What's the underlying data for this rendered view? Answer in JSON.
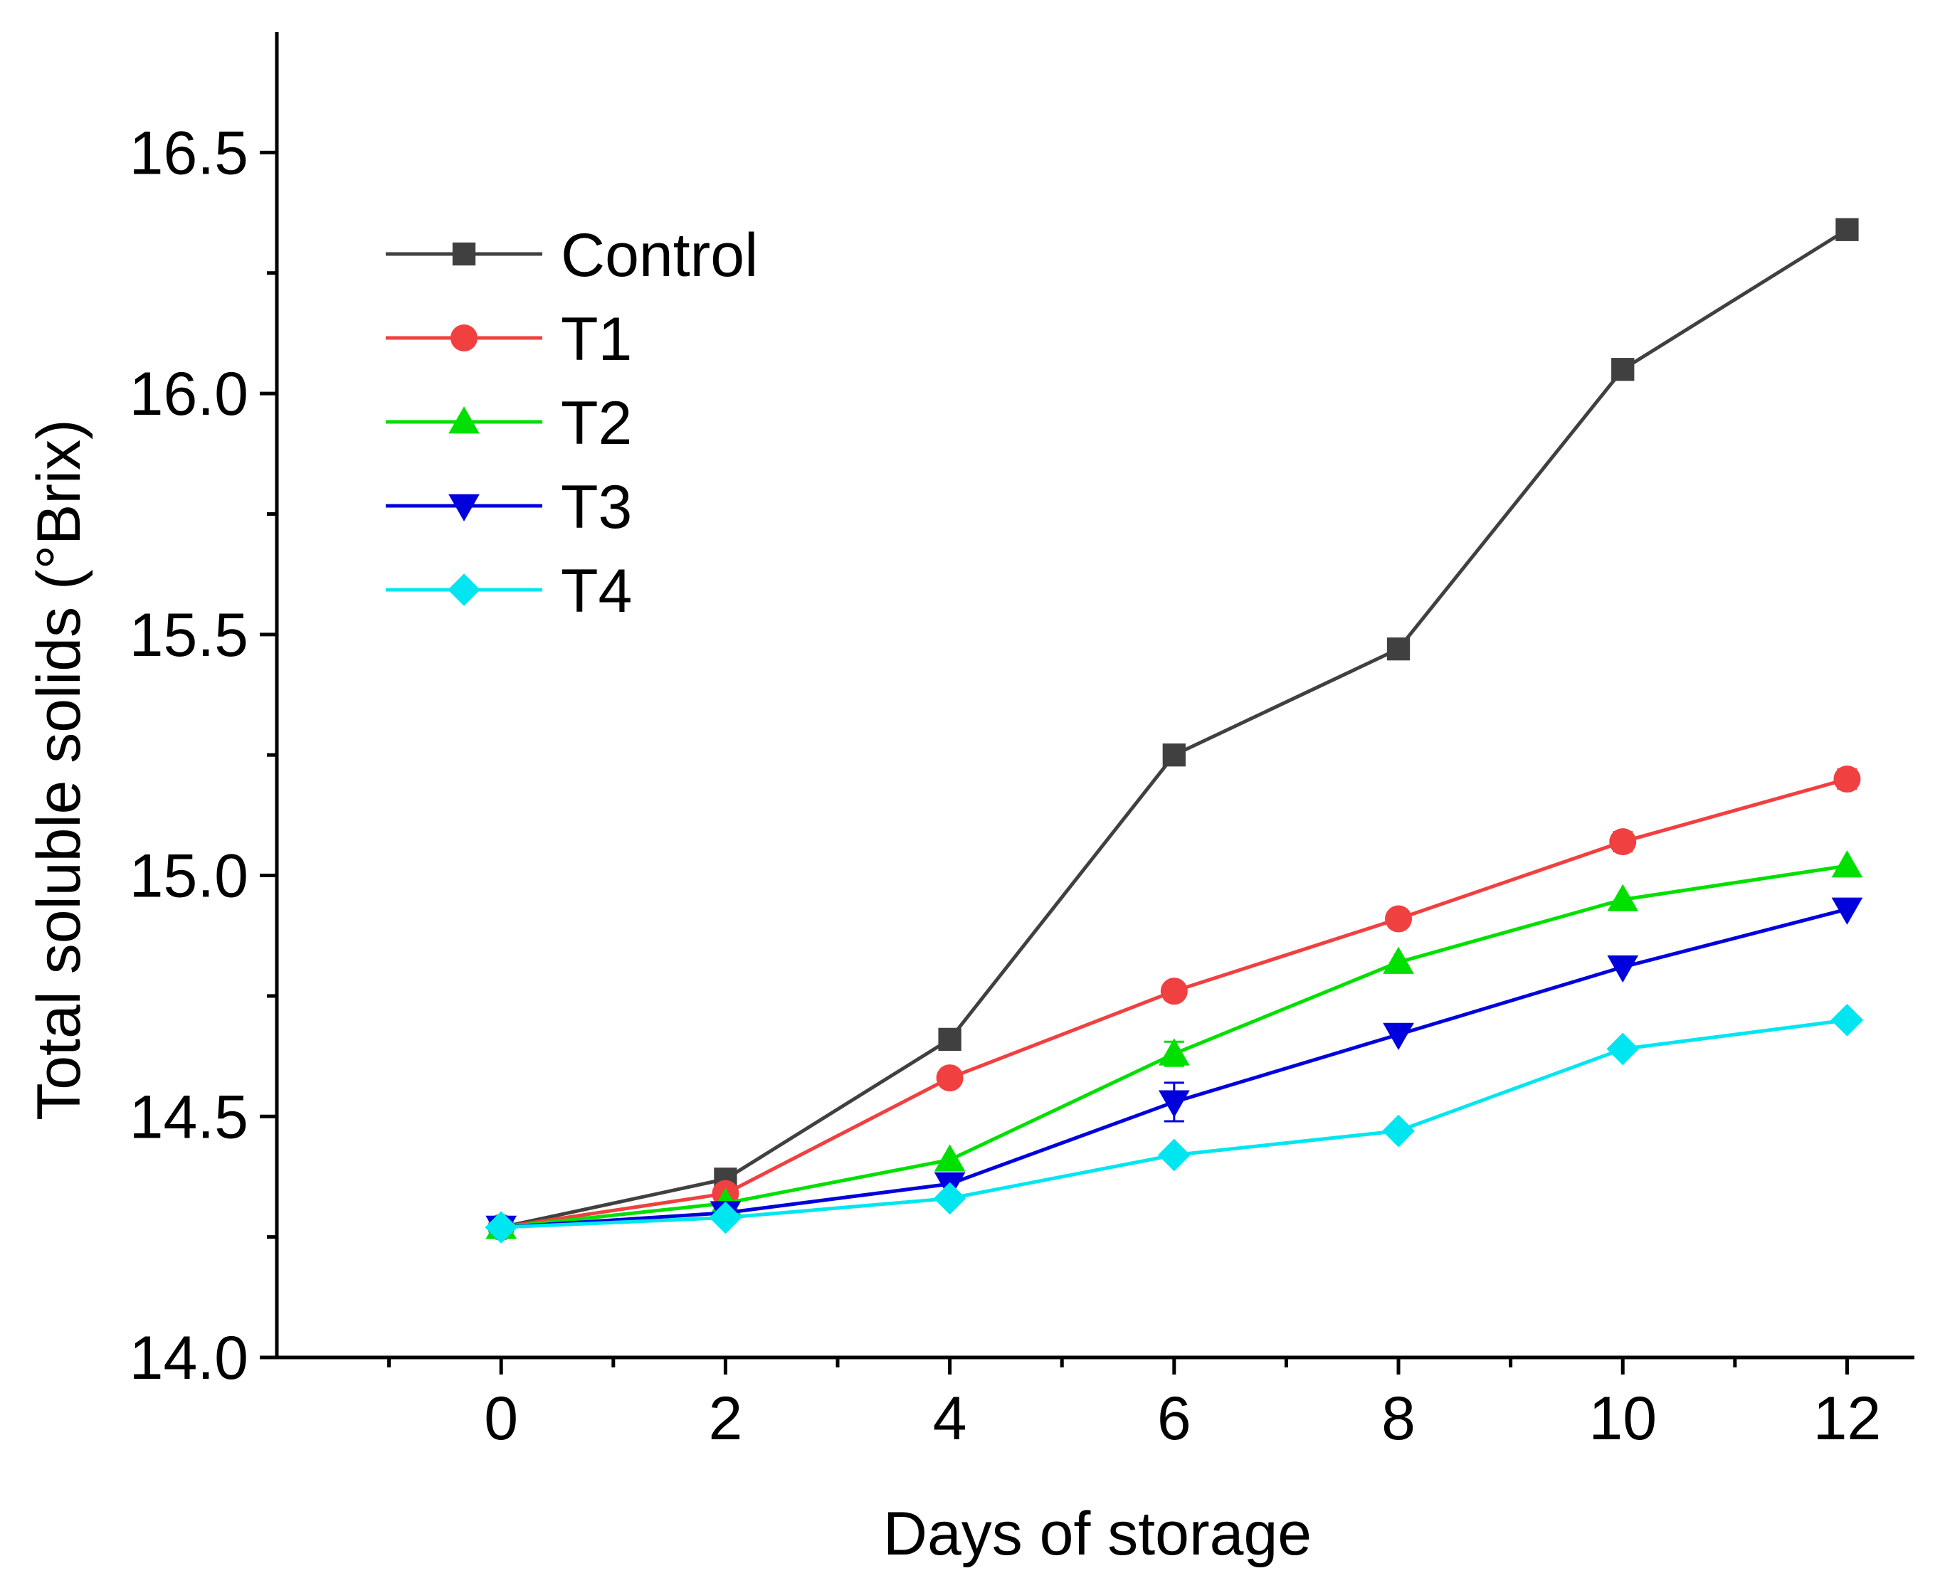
{
  "chart_data": {
    "type": "line",
    "title": "",
    "xlabel": "Days of storage",
    "ylabel": "Total soluble solids (°Brix)",
    "x": [
      0,
      2,
      4,
      6,
      8,
      10,
      12
    ],
    "xlim": [
      -2,
      12.6
    ],
    "ylim": [
      14.0,
      16.75
    ],
    "xticks": [
      0,
      2,
      4,
      6,
      8,
      10,
      12
    ],
    "xtick_labels": [
      "0",
      "2",
      "4",
      "6",
      "8",
      "10",
      "12"
    ],
    "yticks": [
      14.0,
      14.5,
      15.0,
      15.5,
      16.0,
      16.5
    ],
    "ytick_labels": [
      "14.0",
      "14.5",
      "15.0",
      "15.5",
      "16.0",
      "16.5"
    ],
    "grid": false,
    "legend_position": "top-left",
    "series": [
      {
        "name": "Control",
        "color": "#404040",
        "marker": "square",
        "values": [
          14.27,
          14.37,
          14.66,
          15.25,
          15.47,
          16.05,
          16.34
        ],
        "errors": [
          0.005,
          0.005,
          0.005,
          0.005,
          0.005,
          0.005,
          0.005
        ]
      },
      {
        "name": "T1",
        "color": "#f04040",
        "marker": "circle",
        "values": [
          14.27,
          14.34,
          14.58,
          14.76,
          14.91,
          15.07,
          15.2
        ],
        "errors": [
          0.005,
          0.005,
          0.005,
          0.005,
          0.005,
          0.02,
          0.02
        ]
      },
      {
        "name": "T2",
        "color": "#00e000",
        "marker": "triangle-up",
        "values": [
          14.27,
          14.32,
          14.41,
          14.63,
          14.82,
          14.95,
          15.02
        ],
        "errors": [
          0.005,
          0.005,
          0.005,
          0.025,
          0.005,
          0.005,
          0.005
        ]
      },
      {
        "name": "T3",
        "color": "#0000dd",
        "marker": "triangle-down",
        "values": [
          14.27,
          14.3,
          14.36,
          14.53,
          14.67,
          14.81,
          14.93
        ],
        "errors": [
          0.005,
          0.02,
          0.005,
          0.04,
          0.005,
          0.005,
          0.005
        ]
      },
      {
        "name": "T4",
        "color": "#00e6f0",
        "marker": "diamond",
        "values": [
          14.27,
          14.29,
          14.33,
          14.42,
          14.47,
          14.64,
          14.7
        ],
        "errors": [
          0.005,
          0.005,
          0.005,
          0.005,
          0.005,
          0.005,
          0.005
        ]
      }
    ]
  }
}
